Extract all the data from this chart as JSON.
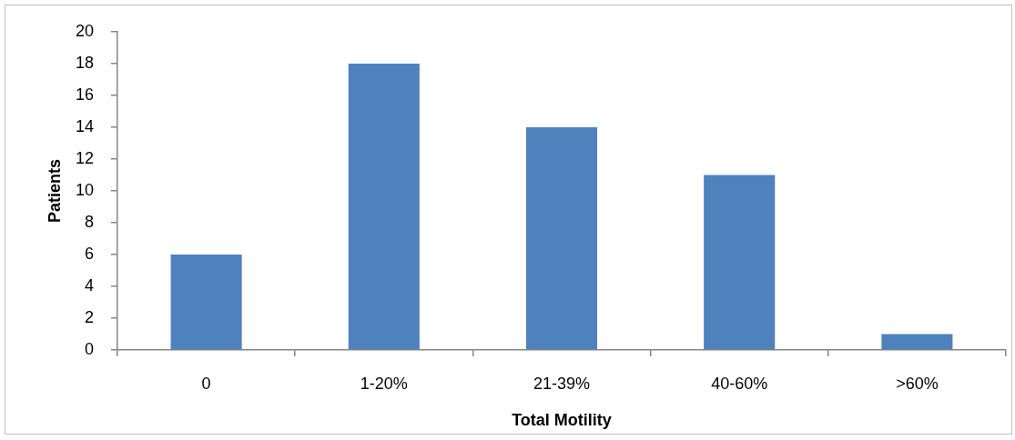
{
  "chart_data": {
    "type": "bar",
    "xlabel": "Total Motility",
    "ylabel": "Patients",
    "categories": [
      "0",
      "1-20%",
      "21-39%",
      "40-60%",
      ">60%"
    ],
    "values": [
      6,
      18,
      14,
      11,
      1
    ],
    "color": "#4f81bd",
    "ylim": [
      0,
      20
    ],
    "yticks": [
      0,
      2,
      4,
      6,
      8,
      10,
      12,
      14,
      16,
      18,
      20
    ]
  }
}
